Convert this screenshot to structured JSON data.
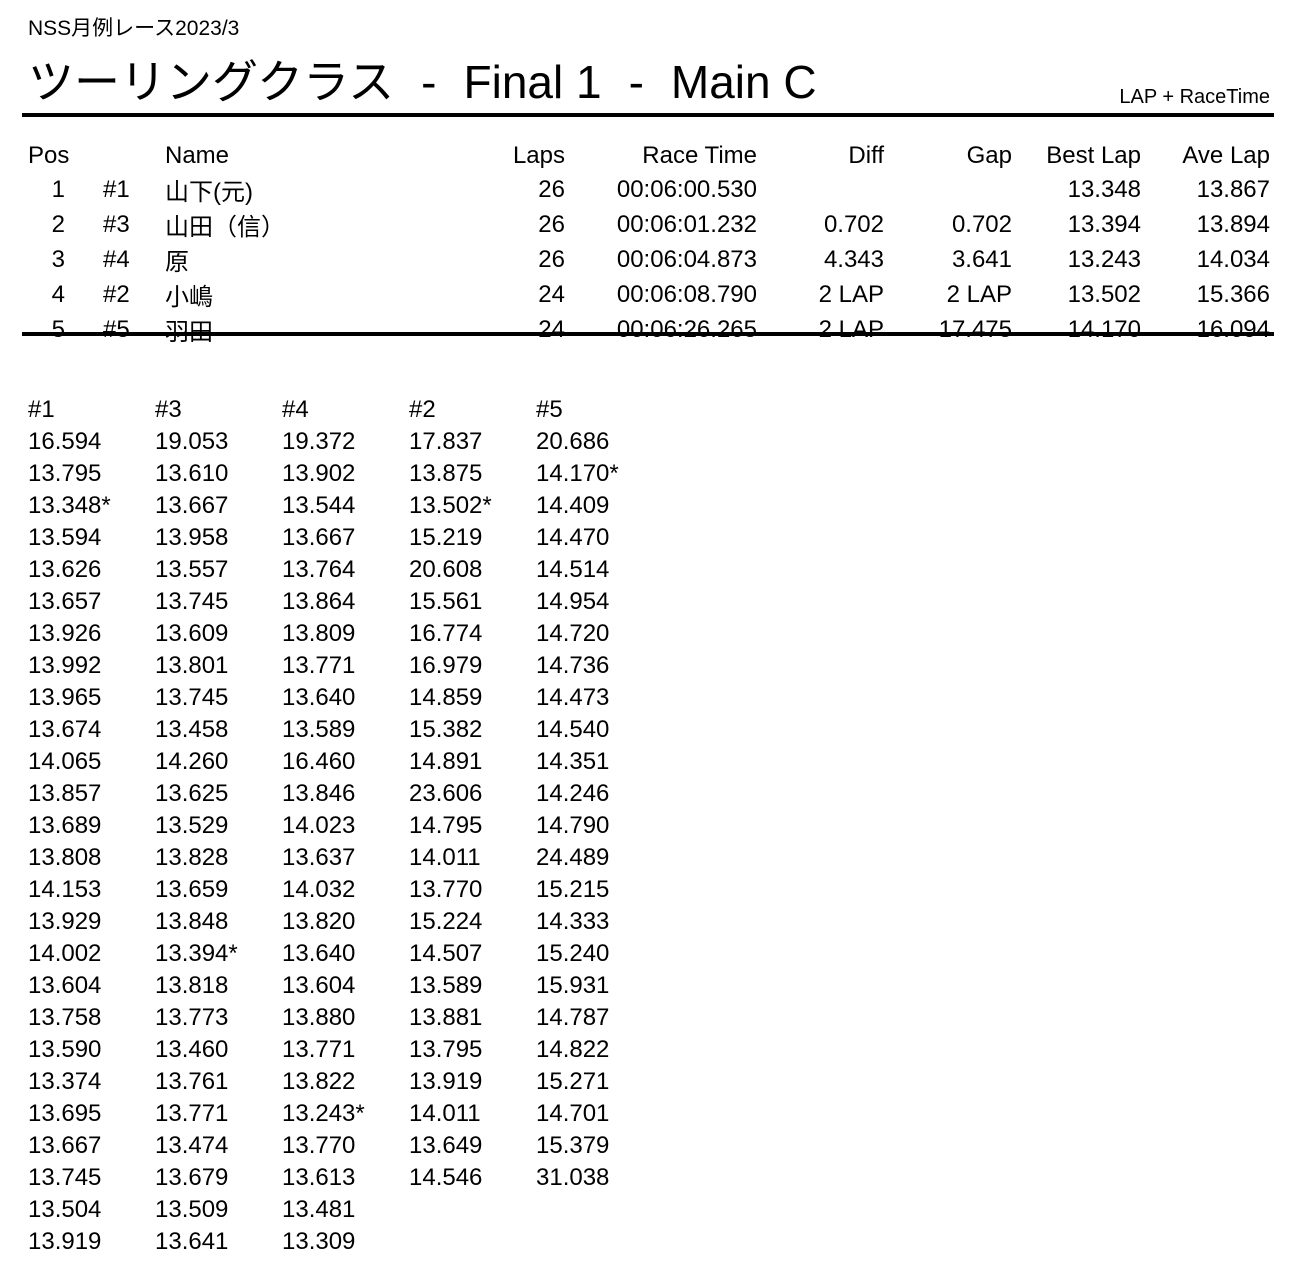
{
  "header": {
    "event": "NSS月例レース2023/3",
    "title_parts": [
      "ツーリングクラス",
      "-",
      "Final 1",
      "-",
      "Main C"
    ],
    "timing_mode": "LAP + RaceTime"
  },
  "results": {
    "headers": {
      "pos": "Pos",
      "car": "",
      "name": "Name",
      "laps": "Laps",
      "race_time": "Race Time",
      "diff": "Diff",
      "gap": "Gap",
      "best_lap": "Best Lap",
      "ave_lap": "Ave Lap"
    },
    "rows": [
      {
        "pos": "1",
        "car": "#1",
        "name": "山下(元)",
        "laps": "26",
        "race_time": "00:06:00.530",
        "diff": "",
        "gap": "",
        "best_lap": "13.348",
        "ave_lap": "13.867"
      },
      {
        "pos": "2",
        "car": "#3",
        "name": "山田（信）",
        "laps": "26",
        "race_time": "00:06:01.232",
        "diff": "0.702",
        "gap": "0.702",
        "best_lap": "13.394",
        "ave_lap": "13.894"
      },
      {
        "pos": "3",
        "car": "#4",
        "name": "原",
        "laps": "26",
        "race_time": "00:06:04.873",
        "diff": "4.343",
        "gap": "3.641",
        "best_lap": "13.243",
        "ave_lap": "14.034"
      },
      {
        "pos": "4",
        "car": "#2",
        "name": "小嶋",
        "laps": "24",
        "race_time": "00:06:08.790",
        "diff": "2 LAP",
        "gap": "2 LAP",
        "best_lap": "13.502",
        "ave_lap": "15.366"
      },
      {
        "pos": "5",
        "car": "#5",
        "name": "羽田",
        "laps": "24",
        "race_time": "00:06:26.265",
        "diff": "2 LAP",
        "gap": "17.475",
        "best_lap": "14.170",
        "ave_lap": "16.094"
      }
    ]
  },
  "lap_times": {
    "columns": [
      "#1",
      "#3",
      "#4",
      "#2",
      "#5"
    ],
    "rows": [
      [
        "16.594",
        "19.053",
        "19.372",
        "17.837",
        "20.686"
      ],
      [
        "13.795",
        "13.610",
        "13.902",
        "13.875",
        "14.170*"
      ],
      [
        "13.348*",
        "13.667",
        "13.544",
        "13.502*",
        "14.409"
      ],
      [
        "13.594",
        "13.958",
        "13.667",
        "15.219",
        "14.470"
      ],
      [
        "13.626",
        "13.557",
        "13.764",
        "20.608",
        "14.514"
      ],
      [
        "13.657",
        "13.745",
        "13.864",
        "15.561",
        "14.954"
      ],
      [
        "13.926",
        "13.609",
        "13.809",
        "16.774",
        "14.720"
      ],
      [
        "13.992",
        "13.801",
        "13.771",
        "16.979",
        "14.736"
      ],
      [
        "13.965",
        "13.745",
        "13.640",
        "14.859",
        "14.473"
      ],
      [
        "13.674",
        "13.458",
        "13.589",
        "15.382",
        "14.540"
      ],
      [
        "14.065",
        "14.260",
        "16.460",
        "14.891",
        "14.351"
      ],
      [
        "13.857",
        "13.625",
        "13.846",
        "23.606",
        "14.246"
      ],
      [
        "13.689",
        "13.529",
        "14.023",
        "14.795",
        "14.790"
      ],
      [
        "13.808",
        "13.828",
        "13.637",
        "14.011",
        "24.489"
      ],
      [
        "14.153",
        "13.659",
        "14.032",
        "13.770",
        "15.215"
      ],
      [
        "13.929",
        "13.848",
        "13.820",
        "15.224",
        "14.333"
      ],
      [
        "14.002",
        "13.394*",
        "13.640",
        "14.507",
        "15.240"
      ],
      [
        "13.604",
        "13.818",
        "13.604",
        "13.589",
        "15.931"
      ],
      [
        "13.758",
        "13.773",
        "13.880",
        "13.881",
        "14.787"
      ],
      [
        "13.590",
        "13.460",
        "13.771",
        "13.795",
        "14.822"
      ],
      [
        "13.374",
        "13.761",
        "13.822",
        "13.919",
        "15.271"
      ],
      [
        "13.695",
        "13.771",
        "13.243*",
        "14.011",
        "14.701"
      ],
      [
        "13.667",
        "13.474",
        "13.770",
        "13.649",
        "15.379"
      ],
      [
        "13.745",
        "13.679",
        "13.613",
        "14.546",
        "31.038"
      ],
      [
        "13.504",
        "13.509",
        "13.481",
        "",
        ""
      ],
      [
        "13.919",
        "13.641",
        "13.309",
        "",
        ""
      ]
    ]
  }
}
